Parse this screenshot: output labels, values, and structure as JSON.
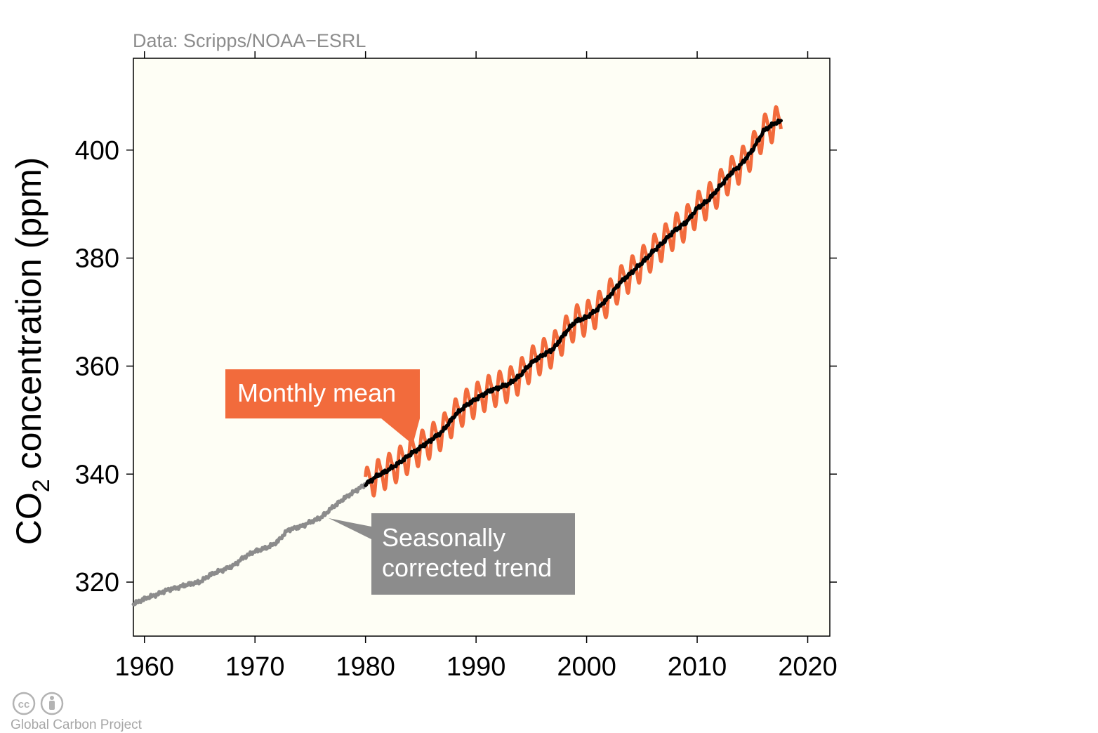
{
  "source_note": "Data: Scripps/NOAA−ESRL",
  "credit": {
    "text": "Global Carbon Project",
    "icons": [
      "creative-commons-icon",
      "attribution-icon"
    ],
    "cc_text": "cc"
  },
  "annotations": {
    "monthly": "Monthly mean",
    "trend_line1": "Seasonally",
    "trend_line2": "corrected trend"
  },
  "colors": {
    "plot_background": "#fefef5",
    "monthly": "#f26b3c",
    "trend_early": "#8c8c8c",
    "trend_late": "#000000",
    "callout_gray": "#8c8c8c",
    "source_text": "#8c8c8c"
  },
  "chart_data": {
    "type": "line",
    "title": "",
    "xlabel": "",
    "ylabel": {
      "prefix": "CO",
      "subscript": "2",
      "suffix": " concentration (ppm)"
    },
    "xlim": [
      1959,
      2022
    ],
    "ylim": [
      310,
      417
    ],
    "xticks": [
      1960,
      1970,
      1980,
      1990,
      2000,
      2010,
      2020
    ],
    "yticks": [
      320,
      340,
      360,
      380,
      400
    ],
    "grid": false,
    "legend": "none",
    "series": [
      {
        "label": "Seasonally corrected trend (early)",
        "x": [
          1959.0,
          1960.0,
          1961.0,
          1962.0,
          1963.0,
          1964.0,
          1965.0,
          1966.0,
          1967.0,
          1968.0,
          1969.0,
          1970.0,
          1971.0,
          1972.0,
          1973.0,
          1974.0,
          1975.0,
          1976.0,
          1977.0,
          1978.0,
          1979.0,
          1980.0
        ],
        "values": [
          315.9,
          316.9,
          317.6,
          318.5,
          319.0,
          319.6,
          320.0,
          321.4,
          322.2,
          323.0,
          324.6,
          325.7,
          326.3,
          327.4,
          329.7,
          330.2,
          331.1,
          332.0,
          333.8,
          335.4,
          336.8,
          338.1
        ]
      },
      {
        "label": "Seasonally corrected trend",
        "x": [
          1980.0,
          1981.0,
          1982.0,
          1983.0,
          1984.0,
          1985.0,
          1986.0,
          1987.0,
          1988.0,
          1989.0,
          1990.0,
          1991.0,
          1992.0,
          1993.0,
          1994.0,
          1995.0,
          1996.0,
          1997.0,
          1998.0,
          1999.0,
          2000.0,
          2001.0,
          2002.0,
          2003.0,
          2004.0,
          2005.0,
          2006.0,
          2007.0,
          2008.0,
          2009.0,
          2010.0,
          2011.0,
          2012.0,
          2013.0,
          2014.0,
          2015.0,
          2016.0,
          2017.0,
          2017.6
        ],
        "values": [
          338.1,
          339.6,
          340.7,
          342.0,
          343.6,
          345.0,
          346.4,
          348.0,
          350.7,
          352.6,
          353.9,
          355.2,
          356.0,
          356.7,
          358.3,
          360.6,
          362.0,
          363.2,
          366.0,
          368.3,
          369.0,
          370.6,
          372.8,
          375.4,
          377.2,
          379.1,
          381.2,
          383.1,
          385.2,
          386.6,
          389.2,
          390.7,
          393.1,
          395.6,
          397.4,
          400.0,
          403.5,
          405.0,
          405.3
        ]
      }
    ],
    "monthly_mean": {
      "label": "Monthly mean",
      "x_start": 1980.0,
      "x_end": 2017.6,
      "seasonal_amplitude_ppm": 3.2
    }
  }
}
